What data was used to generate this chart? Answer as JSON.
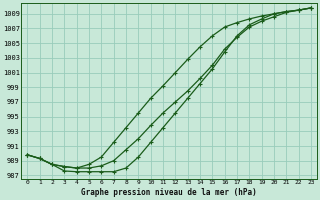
{
  "title": "Graphe pression niveau de la mer (hPa)",
  "bg_color": "#c8e8d8",
  "grid_color": "#99ccbb",
  "line_color": "#1a5c1a",
  "x_min": 0,
  "x_max": 23,
  "y_min": 986.5,
  "y_max": 1010.5,
  "y_ticks": [
    987,
    989,
    991,
    993,
    995,
    997,
    999,
    1001,
    1003,
    1005,
    1007,
    1009
  ],
  "x_ticks": [
    0,
    1,
    2,
    3,
    4,
    5,
    6,
    7,
    8,
    9,
    10,
    11,
    12,
    13,
    14,
    15,
    16,
    17,
    18,
    19,
    20,
    21,
    22,
    23
  ],
  "line_main_x": [
    0,
    1,
    2,
    3,
    4,
    5,
    6,
    7,
    8,
    9,
    10,
    11,
    12,
    13,
    14,
    15,
    16,
    17,
    18,
    19,
    20,
    21,
    22,
    23
  ],
  "line_main_y": [
    989.8,
    989.3,
    988.5,
    988.2,
    988.0,
    988.0,
    988.3,
    989.0,
    990.5,
    992.0,
    993.8,
    995.5,
    997.0,
    998.5,
    1000.2,
    1002.0,
    1004.2,
    1005.8,
    1007.2,
    1008.0,
    1008.6,
    1009.2,
    1009.5,
    1009.8
  ],
  "line_upper_x": [
    0,
    1,
    2,
    3,
    4,
    5,
    6,
    7,
    8,
    9,
    10,
    11,
    12,
    13,
    14,
    15,
    16,
    17,
    18,
    19,
    20,
    21,
    22,
    23
  ],
  "line_upper_y": [
    989.8,
    989.3,
    988.5,
    988.2,
    988.0,
    988.5,
    989.5,
    991.5,
    993.5,
    995.5,
    997.5,
    999.2,
    1001.0,
    1002.8,
    1004.5,
    1006.0,
    1007.2,
    1007.8,
    1008.3,
    1008.7,
    1009.0,
    1009.3,
    1009.5,
    1009.8
  ],
  "line_lower_x": [
    0,
    1,
    2,
    3,
    4,
    5,
    6,
    7,
    8,
    9,
    10,
    11,
    12,
    13,
    14,
    15,
    16,
    17,
    18,
    19,
    20,
    21,
    22,
    23
  ],
  "line_lower_y": [
    989.8,
    989.3,
    988.5,
    987.6,
    987.5,
    987.5,
    987.5,
    987.5,
    988.0,
    989.5,
    991.5,
    993.5,
    995.5,
    997.5,
    999.5,
    1001.5,
    1003.8,
    1006.0,
    1007.5,
    1008.3,
    1009.0,
    1009.3,
    1009.5,
    1009.8
  ]
}
